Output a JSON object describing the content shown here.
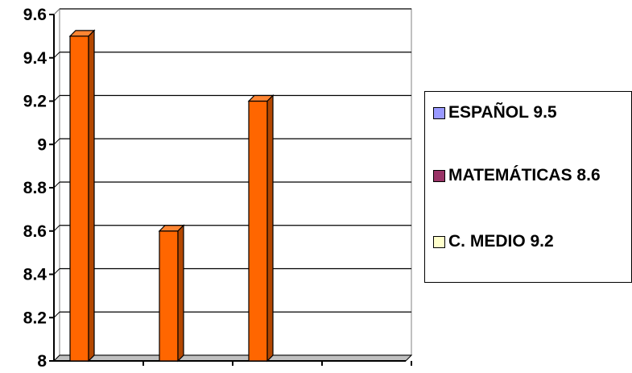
{
  "chart_data": {
    "type": "bar",
    "series": [
      {
        "name": "ESPAÑOL 9.5",
        "value": 9.5,
        "legend_color": "#9999ff"
      },
      {
        "name": "MATEMÁTICAS 8.6",
        "value": 8.6,
        "legend_color": "#993366"
      },
      {
        "name": "C. MEDIO 9.2",
        "value": 9.2,
        "legend_color": "#ffffcc"
      }
    ],
    "bar_color": "#ff6600",
    "y_ticks": [
      "8",
      "8.2",
      "8.4",
      "8.6",
      "8.8",
      "9",
      "9.2",
      "9.4",
      "9.6"
    ],
    "ylim": [
      8,
      9.6
    ],
    "grid": true,
    "legend_position": "right",
    "category_slots": 4
  }
}
